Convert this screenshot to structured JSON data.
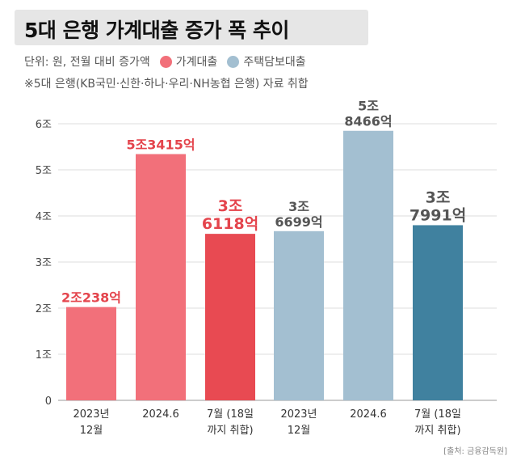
{
  "header": {
    "title": "5대 은행 가계대출 증가 폭 추이",
    "unit_text": "단위: 원, 전월 대비 증가액",
    "legend": [
      {
        "label": "가계대출",
        "color": "#f2707a"
      },
      {
        "label": "주택담보대출",
        "color": "#a3bfd1"
      }
    ],
    "note": "※5대 은행(KB국민·신한·하나·우리·NH농협 은행) 자료 취합"
  },
  "source": "[출처: 금융감독원]",
  "chart_data": {
    "type": "bar",
    "title": "5대 은행 가계대출 증가 폭 추이",
    "xlabel": "",
    "ylabel": "",
    "ylim": [
      0,
      6
    ],
    "y_ticks": [
      "0",
      "1조",
      "2조",
      "3조",
      "4조",
      "5조",
      "6조"
    ],
    "grid": true,
    "categories": [
      [
        "2023년",
        "12월"
      ],
      [
        "2024.6"
      ],
      [
        "7월 (18일",
        "까지 취합)"
      ],
      [
        "2023년",
        "12월"
      ],
      [
        "2024.6"
      ],
      [
        "7월 (18일",
        "까지 취합)"
      ]
    ],
    "series": [
      {
        "name": "가계대출",
        "category_indices": [
          0,
          1,
          2
        ]
      },
      {
        "name": "주택담보대출",
        "category_indices": [
          3,
          4,
          5
        ]
      }
    ],
    "bars": [
      {
        "group": "가계대출",
        "value": 2.0238,
        "label": [
          "2조238억"
        ],
        "color": "#f2707a",
        "label_color": "#e4444c",
        "label_size": 16
      },
      {
        "group": "가계대출",
        "value": 5.3415,
        "label": [
          "5조3415억"
        ],
        "color": "#f2707a",
        "label_color": "#e4444c",
        "label_size": 16
      },
      {
        "group": "가계대출",
        "value": 3.6118,
        "label": [
          "3조",
          "6118억"
        ],
        "color": "#e84a52",
        "label_color": "#e4444c",
        "label_size": 19
      },
      {
        "group": "주택담보대출",
        "value": 3.6699,
        "label": [
          "3조",
          "6699억"
        ],
        "color": "#a3bfd1",
        "label_color": "#555555",
        "label_size": 16
      },
      {
        "group": "주택담보대출",
        "value": 5.8466,
        "label": [
          "5조",
          "8466억"
        ],
        "color": "#a3bfd1",
        "label_color": "#555555",
        "label_size": 16
      },
      {
        "group": "주택담보대출",
        "value": 3.7991,
        "label": [
          "3조",
          "7991억"
        ],
        "color": "#40819f",
        "label_color": "#555555",
        "label_size": 19
      }
    ]
  }
}
